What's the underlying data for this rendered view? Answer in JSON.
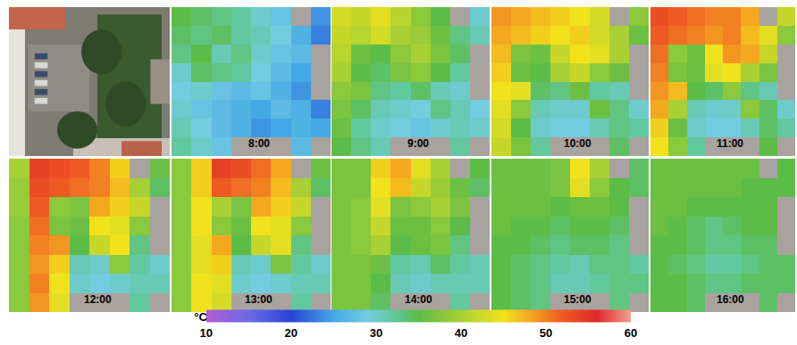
{
  "chart_data": {
    "type": "heatmap",
    "tick_labels": false,
    "zlim": [
      10,
      60
    ],
    "zticks": [
      10,
      20,
      30,
      40,
      50,
      60
    ],
    "colorbar_title": "°C",
    "panels": [
      {
        "title": "8:00",
        "z": [
          [
            35,
            34,
            33,
            32,
            30,
            28,
            null,
            24
          ],
          [
            34,
            33,
            34,
            32,
            31,
            29,
            26,
            23
          ],
          [
            33,
            35,
            31,
            33,
            30,
            28,
            27,
            null
          ],
          [
            30,
            34,
            33,
            32,
            29,
            27,
            25,
            null
          ],
          [
            29,
            30,
            28,
            27,
            28,
            26,
            24,
            null
          ],
          [
            30,
            28,
            27,
            26,
            25,
            27,
            26,
            23
          ],
          [
            31,
            29,
            27,
            26,
            24,
            25,
            26,
            25
          ],
          [
            32,
            30,
            28,
            null,
            null,
            null,
            27,
            null
          ]
        ]
      },
      {
        "title": "9:00",
        "z": [
          [
            43,
            42,
            44,
            41,
            38,
            35,
            null,
            30
          ],
          [
            42,
            41,
            43,
            40,
            39,
            36,
            33,
            31
          ],
          [
            41,
            36,
            35,
            38,
            40,
            37,
            34,
            null
          ],
          [
            40,
            35,
            34,
            37,
            38,
            35,
            32,
            null
          ],
          [
            38,
            37,
            33,
            32,
            34,
            31,
            30,
            null
          ],
          [
            37,
            34,
            31,
            30,
            29,
            33,
            31,
            29
          ],
          [
            36,
            32,
            30,
            29,
            28,
            30,
            31,
            30
          ],
          [
            35,
            33,
            31,
            null,
            null,
            null,
            32,
            null
          ]
        ]
      },
      {
        "title": "10:00",
        "z": [
          [
            49,
            48,
            47,
            46,
            45,
            43,
            null,
            38
          ],
          [
            48,
            47,
            46,
            45,
            46,
            43,
            40,
            36
          ],
          [
            47,
            37,
            36,
            42,
            45,
            44,
            40,
            null
          ],
          [
            46,
            36,
            35,
            40,
            42,
            38,
            36,
            null
          ],
          [
            45,
            44,
            34,
            33,
            36,
            32,
            31,
            null
          ],
          [
            44,
            38,
            31,
            30,
            30,
            36,
            33,
            30
          ],
          [
            43,
            35,
            30,
            29,
            29,
            31,
            33,
            32
          ],
          [
            42,
            37,
            32,
            null,
            null,
            null,
            34,
            null
          ]
        ]
      },
      {
        "title": "11:00",
        "z": [
          [
            53,
            52,
            51,
            50,
            50,
            48,
            null,
            42
          ],
          [
            52,
            51,
            50,
            49,
            50,
            47,
            44,
            38
          ],
          [
            51,
            38,
            36,
            45,
            49,
            48,
            42,
            null
          ],
          [
            50,
            37,
            36,
            44,
            45,
            40,
            37,
            null
          ],
          [
            49,
            47,
            35,
            34,
            38,
            33,
            31,
            null
          ],
          [
            48,
            40,
            31,
            30,
            30,
            38,
            34,
            30
          ],
          [
            46,
            36,
            30,
            29,
            29,
            31,
            34,
            32
          ],
          [
            45,
            38,
            32,
            null,
            null,
            null,
            35,
            null
          ]
        ]
      },
      {
        "title": "12:00",
        "z": [
          [
            40,
            54,
            53,
            52,
            50,
            46,
            null,
            36
          ],
          [
            39,
            53,
            52,
            51,
            50,
            47,
            40,
            34
          ],
          [
            39,
            52,
            38,
            37,
            48,
            46,
            42,
            null
          ],
          [
            38,
            51,
            37,
            36,
            45,
            44,
            38,
            null
          ],
          [
            38,
            50,
            49,
            35,
            42,
            45,
            33,
            null
          ],
          [
            38,
            49,
            46,
            31,
            30,
            38,
            32,
            30
          ],
          [
            38,
            50,
            45,
            30,
            29,
            30,
            31,
            31
          ],
          [
            38,
            49,
            44,
            null,
            null,
            null,
            32,
            null
          ]
        ]
      },
      {
        "title": "13:00",
        "z": [
          [
            38,
            46,
            54,
            53,
            51,
            48,
            null,
            36
          ],
          [
            38,
            46,
            52,
            51,
            50,
            47,
            40,
            34
          ],
          [
            38,
            45,
            40,
            37,
            48,
            46,
            42,
            null
          ],
          [
            38,
            45,
            38,
            36,
            45,
            44,
            38,
            null
          ],
          [
            38,
            44,
            48,
            35,
            42,
            44,
            33,
            null
          ],
          [
            38,
            44,
            46,
            31,
            30,
            37,
            32,
            30
          ],
          [
            38,
            45,
            44,
            30,
            29,
            30,
            31,
            31
          ],
          [
            38,
            45,
            43,
            null,
            null,
            null,
            32,
            null
          ]
        ]
      },
      {
        "title": "14:00",
        "z": [
          [
            37,
            37,
            46,
            48,
            44,
            40,
            null,
            35
          ],
          [
            37,
            37,
            45,
            47,
            42,
            39,
            36,
            34
          ],
          [
            37,
            38,
            44,
            37,
            38,
            40,
            37,
            null
          ],
          [
            37,
            38,
            42,
            36,
            36,
            38,
            35,
            null
          ],
          [
            37,
            38,
            40,
            35,
            36,
            37,
            33,
            null
          ],
          [
            37,
            37,
            36,
            32,
            31,
            34,
            32,
            31
          ],
          [
            37,
            37,
            35,
            31,
            30,
            31,
            31,
            31
          ],
          [
            37,
            37,
            34,
            null,
            null,
            null,
            32,
            null
          ]
        ]
      },
      {
        "title": "15:00",
        "z": [
          [
            36,
            36,
            36,
            37,
            45,
            40,
            null,
            34
          ],
          [
            36,
            36,
            36,
            37,
            44,
            38,
            35,
            34
          ],
          [
            36,
            36,
            36,
            35,
            36,
            36,
            35,
            null
          ],
          [
            36,
            35,
            35,
            34,
            35,
            35,
            34,
            null
          ],
          [
            35,
            35,
            34,
            33,
            34,
            34,
            33,
            null
          ],
          [
            35,
            34,
            33,
            32,
            31,
            33,
            33,
            32
          ],
          [
            35,
            34,
            33,
            31,
            31,
            32,
            33,
            33
          ],
          [
            35,
            34,
            33,
            null,
            null,
            null,
            33,
            null
          ]
        ]
      },
      {
        "title": "16:00",
        "z": [
          [
            36,
            36,
            36,
            36,
            36,
            36,
            null,
            35
          ],
          [
            36,
            36,
            36,
            36,
            36,
            35,
            35,
            35
          ],
          [
            36,
            36,
            35,
            35,
            35,
            35,
            35,
            null
          ],
          [
            36,
            35,
            34,
            33,
            34,
            35,
            35,
            null
          ],
          [
            35,
            35,
            34,
            33,
            33,
            34,
            34,
            null
          ],
          [
            35,
            34,
            33,
            32,
            32,
            33,
            34,
            34
          ],
          [
            35,
            35,
            34,
            33,
            33,
            34,
            34,
            34
          ],
          [
            35,
            35,
            34,
            null,
            null,
            null,
            34,
            null
          ]
        ]
      }
    ]
  }
}
